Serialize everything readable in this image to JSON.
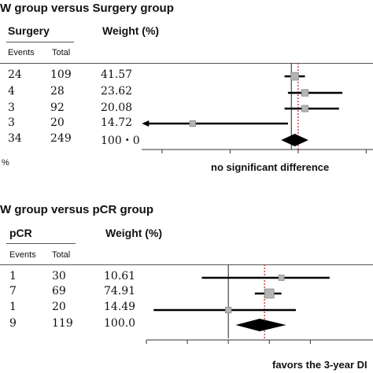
{
  "panels": [
    {
      "title": "W group versus Surgery group",
      "group_header": "Surgery",
      "weight_header": "Weight (%)",
      "sub_events": "Events",
      "sub_total": "Total",
      "rows": [
        {
          "events": "24",
          "total": "109",
          "weight": "41.57"
        },
        {
          "events": "4",
          "total": "28",
          "weight": "23.62"
        },
        {
          "events": "3",
          "total": "92",
          "weight": "20.08"
        },
        {
          "events": "3",
          "total": "20",
          "weight": "14.72"
        },
        {
          "events": "34",
          "total": "249",
          "weight": "100・0"
        }
      ],
      "footnote": "%",
      "annotation": "no significant difference"
    },
    {
      "title": "W group versus pCR group",
      "group_header": "pCR",
      "weight_header": "Weight (%)",
      "sub_events": "Events",
      "sub_total": "Total",
      "rows": [
        {
          "events": "1",
          "total": "30",
          "weight": "10.61"
        },
        {
          "events": "7",
          "total": "69",
          "weight": "74.91"
        },
        {
          "events": "1",
          "total": "20",
          "weight": "14.49"
        },
        {
          "events": "9",
          "total": "119",
          "weight": "100.0"
        }
      ],
      "annotation": "favors the 3-year DI"
    }
  ],
  "chart_data": [
    {
      "type": "forest",
      "title": "W group versus Surgery group",
      "studies": [
        {
          "estimate": 0.95,
          "ci": [
            0.8,
            1.1
          ],
          "weight": 41.57
        },
        {
          "estimate": 1.1,
          "ci": [
            0.85,
            1.65
          ],
          "weight": 23.62
        },
        {
          "estimate": 1.1,
          "ci": [
            0.8,
            1.6
          ],
          "weight": 20.08
        },
        {
          "estimate": -0.55,
          "ci": [
            -1.25,
            0.85
          ],
          "weight": 14.72
        }
      ],
      "pooled": {
        "estimate": 0.95,
        "ci": [
          0.75,
          1.15
        ]
      },
      "reference_line": 1.0,
      "null_line": 0.9,
      "xlim": [
        -1.3,
        2.1
      ],
      "ticks": [
        -1.0,
        0.0,
        1.0,
        2.0
      ]
    },
    {
      "type": "forest",
      "title": "W group versus pCR group",
      "studies": [
        {
          "estimate": 1.1,
          "ci": [
            -0.55,
            2.1
          ],
          "weight": 10.61
        },
        {
          "estimate": 0.85,
          "ci": [
            0.55,
            1.1
          ],
          "weight": 74.91
        },
        {
          "estimate": 0.0,
          "ci": [
            -1.55,
            1.4
          ],
          "weight": 14.49
        }
      ],
      "pooled": {
        "estimate": 0.65,
        "ci": [
          0.15,
          1.2
        ]
      },
      "reference_line": 0.75,
      "null_line": 0.0,
      "xlim": [
        -1.7,
        3.0
      ],
      "ticks": [
        -1.7,
        -0.85,
        0.0,
        0.85,
        1.7
      ]
    }
  ]
}
